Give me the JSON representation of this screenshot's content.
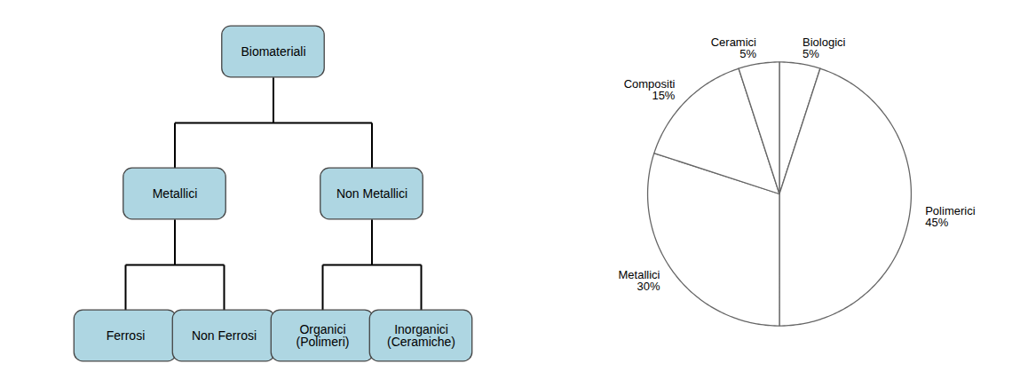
{
  "chart_data": [
    {
      "type": "tree",
      "labels": [
        "Biomateriali",
        "Metallici",
        "Non Metallici",
        "Ferrosi",
        "Non Ferrosi",
        "Organici\n(Polimeri)",
        "Inorganici\n(Ceramiche)"
      ],
      "parents": [
        null,
        0,
        0,
        1,
        1,
        2,
        2
      ],
      "color": "#aed6e2"
    },
    {
      "type": "pie",
      "categories": [
        "Biologici",
        "Polimerici",
        "Metallici",
        "Compositi",
        "Ceramici"
      ],
      "values": [
        5,
        45,
        30,
        15,
        5
      ],
      "value_labels": [
        "5%",
        "45%",
        "30%",
        "15%",
        "5%"
      ],
      "colors": [
        "#ffffff",
        "#ffffff",
        "#ffffff",
        "#ffffff",
        "#ffffff"
      ]
    }
  ]
}
